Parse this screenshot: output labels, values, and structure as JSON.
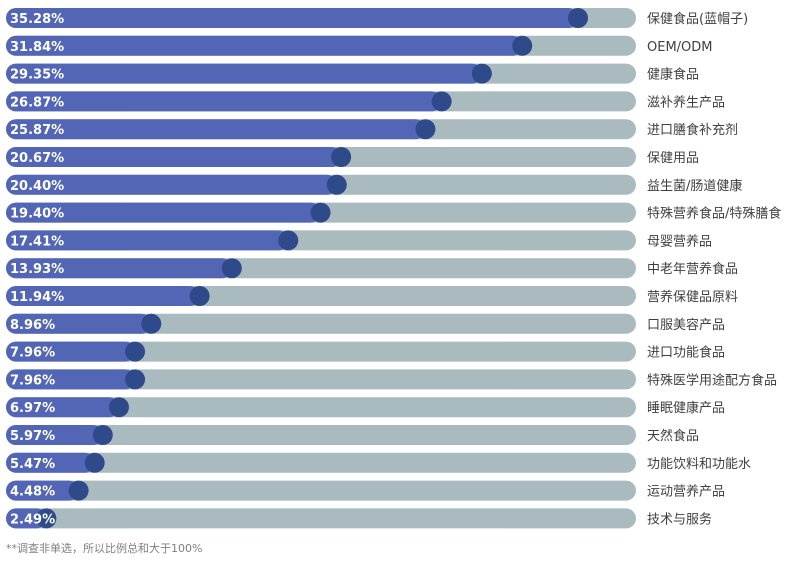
{
  "chart_data": {
    "type": "bar",
    "orientation": "horizontal",
    "value_unit": "%",
    "xlim": [
      0,
      40
    ],
    "categories": [
      "保健食品(蓝帽子)",
      "OEM/ODM",
      "健康食品",
      "滋补养生产品",
      "进口膳食补充剂",
      "保健用品",
      "益生菌/肠道健康",
      "特殊营养食品/特殊膳食",
      "母婴营养品",
      "中老年营养食品",
      "营养保健品原料",
      "口服美容产品",
      "进口功能食品",
      "特殊医学用途配方食品",
      "睡眠健康产品",
      "天然食品",
      "功能饮料和功能水",
      "运动营养产品",
      "技术与服务"
    ],
    "values": [
      35.28,
      31.84,
      29.35,
      26.87,
      25.87,
      20.67,
      20.4,
      19.4,
      17.41,
      13.93,
      11.94,
      8.96,
      7.96,
      7.96,
      6.97,
      5.97,
      5.47,
      4.48,
      2.49
    ],
    "value_labels": [
      "35.28%",
      "31.84%",
      "29.35%",
      "26.87%",
      "25.87%",
      "20.67%",
      "20.40%",
      "19.40%",
      "17.41%",
      "13.93%",
      "11.94%",
      "8.96%",
      "7.96%",
      "7.96%",
      "6.97%",
      "5.97%",
      "5.47%",
      "4.48%",
      "2.49%"
    ],
    "colors": {
      "bar": "#5266b5",
      "track": "#a9bbbf",
      "knob": "#2f4a8a",
      "value_text": "#ffffff",
      "category_text": "#404040"
    },
    "footnote": "**调查非单选，所以比例总和大于100%"
  }
}
